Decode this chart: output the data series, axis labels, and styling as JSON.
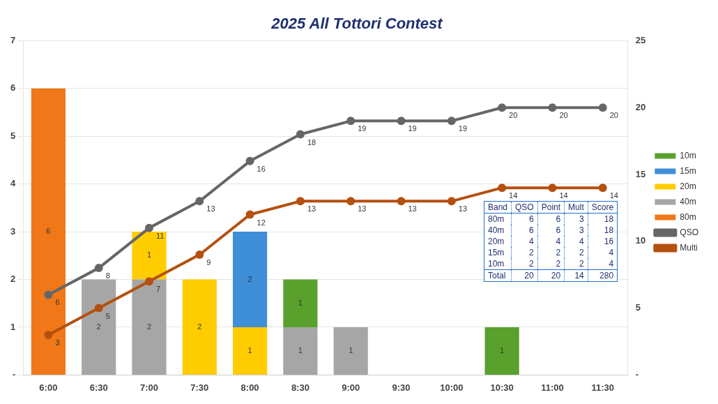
{
  "chart_data": {
    "type": "bar",
    "title": "2025 All Tottori Contest",
    "categories": [
      "6:00",
      "6:30",
      "7:00",
      "7:30",
      "8:00",
      "8:30",
      "9:00",
      "9:30",
      "10:00",
      "10:30",
      "11:00",
      "11:30"
    ],
    "stacked": true,
    "series": [
      {
        "name": "80m",
        "color": "#f07818",
        "values": [
          6,
          null,
          null,
          null,
          null,
          null,
          null,
          null,
          null,
          null,
          null,
          null
        ]
      },
      {
        "name": "40m",
        "color": "#a6a6a6",
        "values": [
          null,
          2,
          2,
          null,
          null,
          1,
          1,
          null,
          null,
          null,
          null,
          null
        ]
      },
      {
        "name": "20m",
        "color": "#ffcc00",
        "values": [
          null,
          null,
          1,
          2,
          1,
          null,
          null,
          null,
          null,
          null,
          null,
          null
        ]
      },
      {
        "name": "15m",
        "color": "#3f8ed8",
        "values": [
          null,
          null,
          null,
          null,
          2,
          null,
          null,
          null,
          null,
          null,
          null,
          null
        ]
      },
      {
        "name": "10m",
        "color": "#5aa02c",
        "values": [
          null,
          null,
          null,
          null,
          null,
          1,
          null,
          null,
          null,
          1,
          null,
          null
        ]
      },
      {
        "name": "Multi",
        "type": "line",
        "axis": "y2",
        "color": "#b5500f",
        "values": [
          3,
          5,
          7,
          9,
          12,
          13,
          13,
          13,
          13,
          14,
          14,
          14
        ]
      },
      {
        "name": "QSO",
        "type": "line",
        "axis": "y2",
        "color": "#666666",
        "values": [
          6,
          8,
          11,
          13,
          16,
          18,
          19,
          19,
          19,
          20,
          20,
          20
        ]
      }
    ],
    "ylim": [
      0,
      7
    ],
    "yticks": [
      {
        "value": 0,
        "label": "-"
      },
      1,
      2,
      3,
      4,
      5,
      6,
      7
    ],
    "y2lim": [
      0,
      25
    ],
    "y2ticks": [
      {
        "value": 0,
        "label": "-"
      },
      5,
      10,
      15,
      20,
      25
    ],
    "grid": "y",
    "legend": "right",
    "marker": "circle",
    "data_labels": true,
    "annotations": [
      "Band",
      "QSO",
      "Point",
      "Mult",
      "Score",
      "80m",
      "6",
      "6",
      "3",
      "18",
      "40m",
      "6",
      "6",
      "3",
      "18",
      "20m",
      "4",
      "4",
      "4",
      "16",
      "15m",
      "2",
      "2",
      "2",
      "4",
      "10m",
      "2",
      "2",
      "2",
      "4",
      "Total",
      "20",
      "20",
      "14",
      "280"
    ]
  }
}
